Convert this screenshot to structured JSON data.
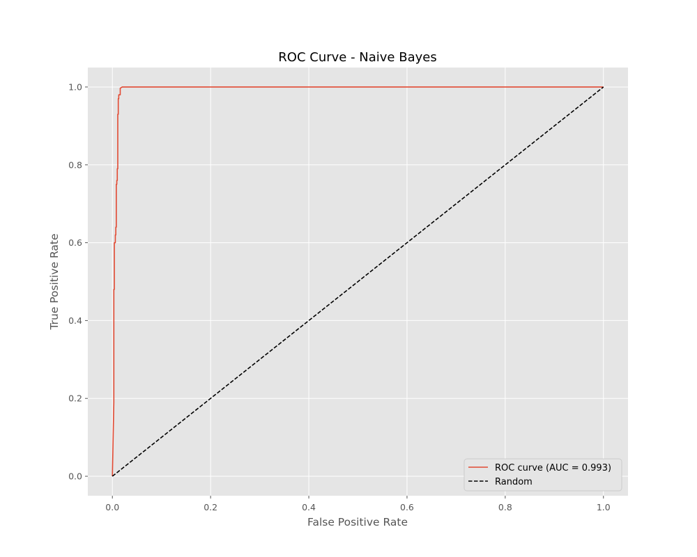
{
  "chart_data": {
    "type": "line",
    "title": "ROC Curve - Naive Bayes",
    "xlabel": "False Positive Rate",
    "ylabel": "True Positive Rate",
    "xlim": [
      -0.05,
      1.05
    ],
    "ylim": [
      -0.05,
      1.05
    ],
    "xticks": [
      0.0,
      0.2,
      0.4,
      0.6,
      0.8,
      1.0
    ],
    "yticks": [
      0.0,
      0.2,
      0.4,
      0.6,
      0.8,
      1.0
    ],
    "xtick_labels": [
      "0.0",
      "0.2",
      "0.4",
      "0.6",
      "0.8",
      "1.0"
    ],
    "ytick_labels": [
      "0.0",
      "0.2",
      "0.4",
      "0.6",
      "0.8",
      "1.0"
    ],
    "grid": true,
    "legend_position": "lower-right",
    "series": [
      {
        "name": "ROC curve (AUC = 0.993)",
        "color": "#E24A33",
        "style": "solid",
        "x": [
          0.0,
          0.003,
          0.003,
          0.004,
          0.004,
          0.006,
          0.006,
          0.007,
          0.007,
          0.008,
          0.008,
          0.009,
          0.009,
          0.01,
          0.01,
          0.011,
          0.011,
          0.012,
          0.012,
          0.013,
          0.013,
          0.016,
          0.016,
          0.02,
          1.0
        ],
        "y": [
          0.0,
          0.19,
          0.48,
          0.48,
          0.6,
          0.6,
          0.62,
          0.62,
          0.64,
          0.64,
          0.75,
          0.75,
          0.76,
          0.76,
          0.79,
          0.79,
          0.93,
          0.93,
          0.97,
          0.97,
          0.98,
          0.98,
          0.997,
          1.0,
          1.0
        ]
      },
      {
        "name": "Random",
        "color": "#000000",
        "style": "dashed",
        "x": [
          0.0,
          1.0
        ],
        "y": [
          0.0,
          1.0
        ]
      }
    ]
  }
}
